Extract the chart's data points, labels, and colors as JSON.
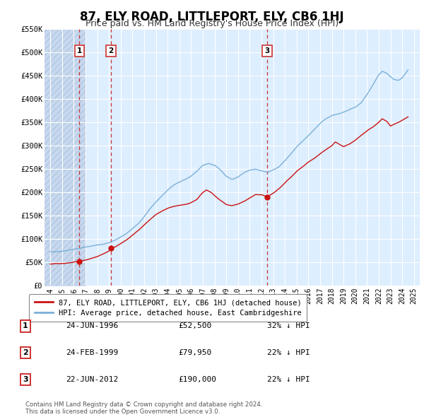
{
  "title": "87, ELY ROAD, LITTLEPORT, ELY, CB6 1HJ",
  "subtitle": "Price paid vs. HM Land Registry's House Price Index (HPI)",
  "ylim": [
    0,
    550000
  ],
  "yticks": [
    0,
    50000,
    100000,
    150000,
    200000,
    250000,
    300000,
    350000,
    400000,
    450000,
    500000,
    550000
  ],
  "ytick_labels": [
    "£0",
    "£50K",
    "£100K",
    "£150K",
    "£200K",
    "£250K",
    "£300K",
    "£350K",
    "£400K",
    "£450K",
    "£500K",
    "£550K"
  ],
  "xlim_start": 1993.5,
  "xlim_end": 2025.5,
  "hatch_end": 1997.0,
  "background_color": "#ddeeff",
  "hatch_color": "#c8d8ee",
  "fig_bg_color": "#ffffff",
  "hpi_line_color": "#7ab0d8",
  "price_line_color": "#cc1111",
  "sale_marker_color": "#cc1111",
  "vline_color": "#cc3333",
  "title_fontsize": 12,
  "subtitle_fontsize": 9,
  "legend_label_price": "87, ELY ROAD, LITTLEPORT, ELY, CB6 1HJ (detached house)",
  "legend_label_hpi": "HPI: Average price, detached house, East Cambridgeshire",
  "sales": [
    {
      "index": 1,
      "date_num": 1996.48,
      "price": 52500,
      "label": "1"
    },
    {
      "index": 2,
      "date_num": 1999.15,
      "price": 79950,
      "label": "2"
    },
    {
      "index": 3,
      "date_num": 2012.48,
      "price": 190000,
      "label": "3"
    }
  ],
  "table_rows": [
    {
      "num": "1",
      "date": "24-JUN-1996",
      "price": "£52,500",
      "hpi": "32% ↓ HPI"
    },
    {
      "num": "2",
      "date": "24-FEB-1999",
      "price": "£79,950",
      "hpi": "22% ↓ HPI"
    },
    {
      "num": "3",
      "date": "22-JUN-2012",
      "price": "£190,000",
      "hpi": "22% ↓ HPI"
    }
  ],
  "footer": "Contains HM Land Registry data © Crown copyright and database right 2024.\nThis data is licensed under the Open Government Licence v3.0.",
  "xtick_years": [
    1994,
    1995,
    1996,
    1997,
    1998,
    1999,
    2000,
    2001,
    2002,
    2003,
    2004,
    2005,
    2006,
    2007,
    2008,
    2009,
    2010,
    2011,
    2012,
    2013,
    2014,
    2015,
    2016,
    2017,
    2018,
    2019,
    2020,
    2021,
    2022,
    2023,
    2024,
    2025
  ]
}
